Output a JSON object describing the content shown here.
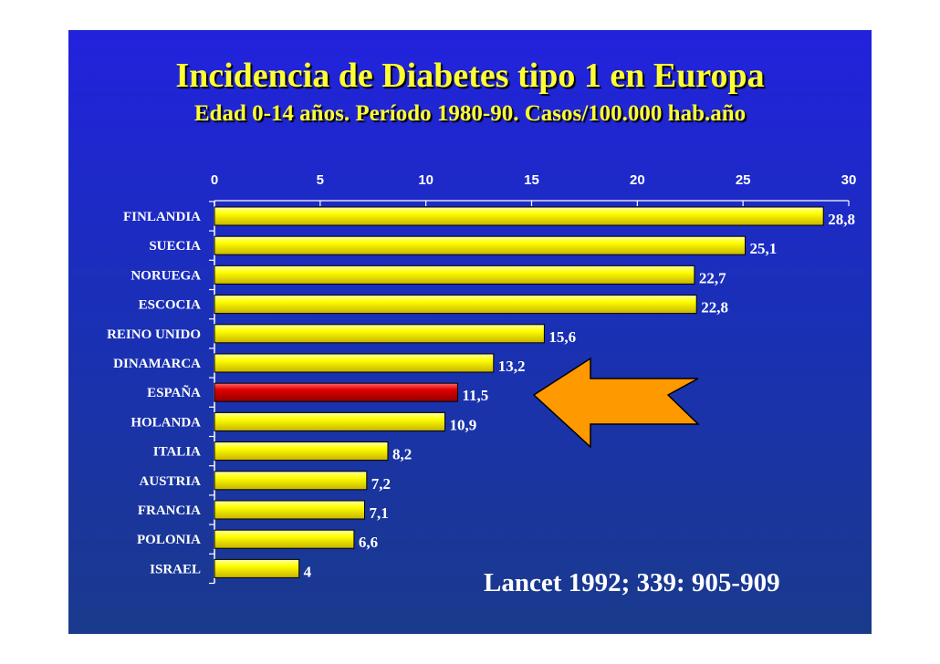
{
  "header": {
    "title": "Incidencia de Diabetes tipo 1 en Europa",
    "subtitle": "Edad 0-14 años. Período 1980-90. Casos/100.000 hab.año"
  },
  "citation": "Lancet 1992; 339: 905-909",
  "colors": {
    "background": "#1f2fc0",
    "bar": "#ffff00",
    "highlight_bar": "#e00000",
    "arrow": "#ff9900",
    "title_text": "#ffff33",
    "label_text": "#ffffff"
  },
  "chart_data": {
    "type": "bar",
    "orientation": "horizontal",
    "title": "Incidencia de Diabetes tipo 1 en Europa",
    "subtitle": "Edad 0-14 años. Período 1980-90. Casos/100.000 hab.año",
    "categories": [
      "FINLANDIA",
      "SUECIA",
      "NORUEGA",
      "ESCOCIA",
      "REINO UNIDO",
      "DINAMARCA",
      "ESPAÑA",
      "HOLANDA",
      "ITALIA",
      "AUSTRIA",
      "FRANCIA",
      "POLONIA",
      "ISRAEL"
    ],
    "values": [
      28.8,
      25.1,
      22.7,
      22.8,
      15.6,
      13.2,
      11.5,
      10.9,
      8.2,
      7.2,
      7.1,
      6.6,
      4
    ],
    "value_labels": [
      "28,8",
      "25,1",
      "22,7",
      "22,8",
      "15,6",
      "13,2",
      "11,5",
      "10,9",
      "8,2",
      "7,2",
      "7,1",
      "6,6",
      "4"
    ],
    "highlight_category": "ESPAÑA",
    "xlim": [
      0,
      30
    ],
    "xticks": [
      0,
      5,
      10,
      15,
      20,
      25,
      30
    ],
    "xtick_labels": [
      "0",
      "5",
      "10",
      "15",
      "20",
      "25",
      "30"
    ],
    "axis_position": "top",
    "grid": false,
    "legend": "none",
    "annotation": "orange arrow pointing left at ESPAÑA"
  }
}
